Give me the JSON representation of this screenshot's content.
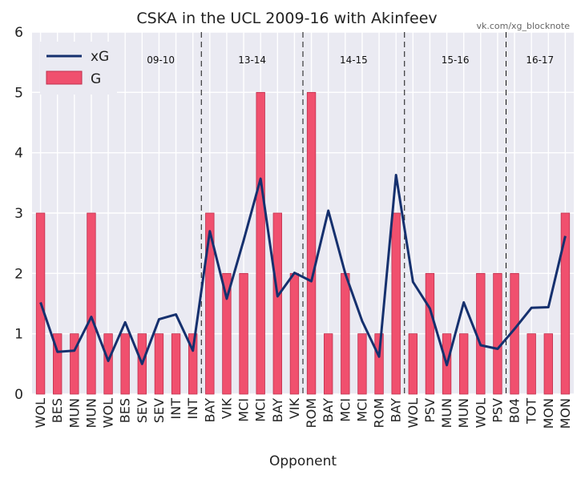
{
  "chart_data": {
    "type": "bar",
    "title": "CSKA in the UCL 2009-16 with Akinfeev",
    "credit": "vk.com/xg_blocknote",
    "xlabel": "Opponent",
    "ylabel": "",
    "ylim": [
      0,
      6
    ],
    "yticks": [
      "0",
      "1",
      "2",
      "3",
      "4",
      "5",
      "6"
    ],
    "grid": true,
    "legend_position": "top-left",
    "colors": {
      "bar": "#f0506e",
      "bar_edge": "#c0304e",
      "line": "#15306e",
      "plot_bg": "#eaeaf2",
      "grid": "#ffffff"
    },
    "categories": [
      "WOL",
      "BES",
      "MUN",
      "MUN",
      "WOL",
      "BES",
      "SEV",
      "SEV",
      "INT",
      "INT",
      "BAY",
      "VIK",
      "MCI",
      "MCI",
      "BAY",
      "VIK",
      "ROM",
      "BAY",
      "MCI",
      "MCI",
      "ROM",
      "BAY",
      "WOL",
      "PSV",
      "MUN",
      "MUN",
      "WOL",
      "PSV",
      "B04",
      "TOT",
      "MON",
      "MON"
    ],
    "series": [
      {
        "name": "xG",
        "kind": "line",
        "values": [
          1.52,
          0.7,
          0.72,
          1.28,
          0.55,
          1.19,
          0.5,
          1.24,
          1.32,
          0.72,
          2.7,
          1.58,
          2.55,
          3.57,
          1.62,
          2.01,
          1.87,
          3.04,
          2.0,
          1.21,
          0.62,
          3.63,
          1.86,
          1.42,
          0.48,
          1.52,
          0.81,
          0.75,
          1.08,
          1.43,
          1.44,
          2.62
        ]
      },
      {
        "name": "G",
        "kind": "bar",
        "values": [
          3,
          1,
          1,
          3,
          1,
          1,
          1,
          1,
          1,
          1,
          3,
          2,
          2,
          5,
          3,
          2,
          5,
          1,
          2,
          1,
          1,
          3,
          1,
          2,
          1,
          1,
          2,
          2,
          2,
          1,
          1,
          3
        ]
      }
    ],
    "seasons": [
      {
        "label": "09-10",
        "start_index": 0
      },
      {
        "label": "13-14",
        "start_index": 10
      },
      {
        "label": "14-15",
        "start_index": 16
      },
      {
        "label": "15-16",
        "start_index": 22
      },
      {
        "label": "16-17",
        "start_index": 28
      }
    ]
  }
}
